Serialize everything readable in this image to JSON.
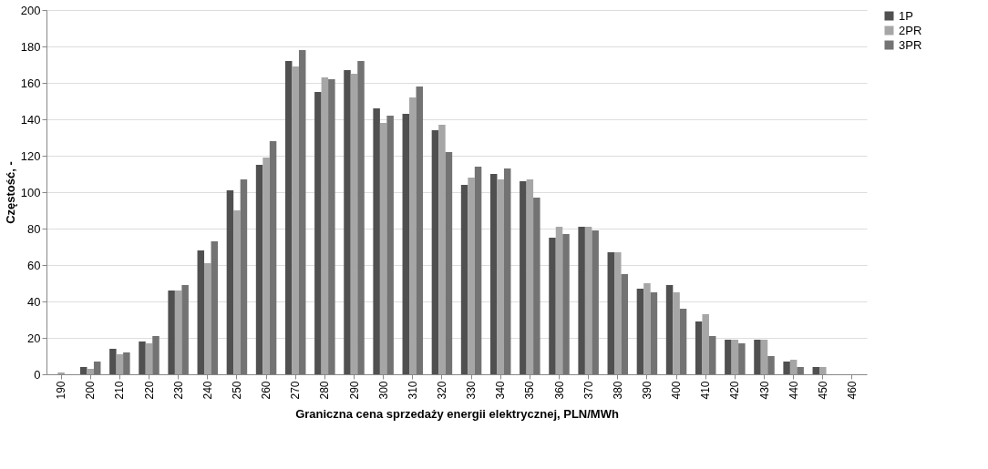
{
  "chart_data": {
    "type": "bar",
    "xlabel": "Graniczna cena sprzedaży energii elektrycznej, PLN/MWh",
    "ylabel": "Częstość, -",
    "categories": [
      "190",
      "200",
      "210",
      "220",
      "230",
      "240",
      "250",
      "260",
      "270",
      "280",
      "290",
      "300",
      "310",
      "320",
      "330",
      "340",
      "350",
      "360",
      "370",
      "380",
      "390",
      "400",
      "410",
      "420",
      "430",
      "440",
      "450",
      "460"
    ],
    "series": [
      {
        "name": "1P",
        "color": "#505050",
        "values": [
          0,
          4,
          14,
          18,
          46,
          68,
          101,
          115,
          172,
          155,
          167,
          146,
          143,
          134,
          104,
          110,
          106,
          75,
          81,
          67,
          47,
          49,
          29,
          19,
          19,
          7,
          4,
          0
        ]
      },
      {
        "name": "2PR",
        "color": "#a6a6a6",
        "values": [
          1,
          3,
          11,
          17,
          46,
          61,
          90,
          119,
          169,
          163,
          165,
          138,
          152,
          137,
          108,
          107,
          107,
          81,
          81,
          67,
          50,
          45,
          33,
          19,
          19,
          8,
          4,
          0
        ]
      },
      {
        "name": "3PR",
        "color": "#737373",
        "values": [
          0,
          7,
          12,
          21,
          49,
          73,
          107,
          128,
          178,
          162,
          172,
          142,
          158,
          122,
          114,
          113,
          97,
          77,
          79,
          55,
          45,
          36,
          21,
          17,
          10,
          4,
          0,
          0
        ]
      }
    ],
    "ylim": [
      0,
      200
    ],
    "yticks": [
      0,
      20,
      40,
      60,
      80,
      100,
      120,
      140,
      160,
      180,
      200
    ],
    "grid": "y",
    "legend": "right"
  }
}
